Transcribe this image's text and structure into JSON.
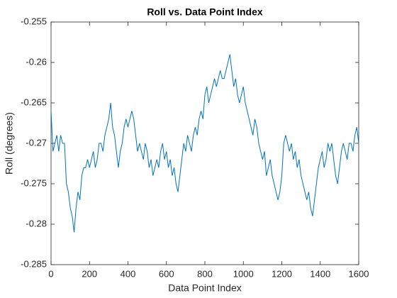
{
  "chart_data": {
    "type": "line",
    "title": "Roll vs. Data Point Index",
    "xlabel": "Data Point Index",
    "ylabel": "Roll (degrees)",
    "x": [
      0,
      10,
      20,
      30,
      40,
      50,
      60,
      70,
      80,
      90,
      100,
      110,
      120,
      130,
      140,
      150,
      160,
      170,
      180,
      190,
      200,
      210,
      220,
      230,
      240,
      250,
      260,
      270,
      280,
      290,
      300,
      310,
      320,
      330,
      340,
      350,
      360,
      370,
      380,
      390,
      400,
      410,
      420,
      430,
      440,
      450,
      460,
      470,
      480,
      490,
      500,
      510,
      520,
      530,
      540,
      550,
      560,
      570,
      580,
      590,
      600,
      610,
      620,
      630,
      640,
      650,
      660,
      670,
      680,
      690,
      700,
      710,
      720,
      730,
      740,
      750,
      760,
      770,
      780,
      790,
      800,
      810,
      820,
      830,
      840,
      850,
      860,
      870,
      880,
      890,
      900,
      910,
      920,
      930,
      940,
      950,
      960,
      970,
      980,
      990,
      1000,
      1010,
      1020,
      1030,
      1040,
      1050,
      1060,
      1070,
      1080,
      1090,
      1100,
      1110,
      1120,
      1130,
      1140,
      1150,
      1160,
      1170,
      1180,
      1190,
      1200,
      1210,
      1220,
      1230,
      1240,
      1250,
      1260,
      1270,
      1280,
      1290,
      1300,
      1310,
      1320,
      1330,
      1340,
      1350,
      1360,
      1370,
      1380,
      1390,
      1400,
      1410,
      1420,
      1430,
      1440,
      1450,
      1460,
      1470,
      1480,
      1490,
      1500,
      1510,
      1520,
      1530,
      1540,
      1550,
      1560,
      1570,
      1580,
      1590,
      1600
    ],
    "series": [
      {
        "name": "Roll",
        "color": "#0072bd",
        "values": [
          -0.266,
          -0.271,
          -0.27,
          -0.269,
          -0.271,
          -0.269,
          -0.27,
          -0.27,
          -0.275,
          -0.276,
          -0.278,
          -0.279,
          -0.281,
          -0.278,
          -0.276,
          -0.277,
          -0.274,
          -0.273,
          -0.273,
          -0.272,
          -0.273,
          -0.272,
          -0.271,
          -0.273,
          -0.272,
          -0.27,
          -0.27,
          -0.271,
          -0.269,
          -0.268,
          -0.267,
          -0.265,
          -0.268,
          -0.269,
          -0.271,
          -0.273,
          -0.271,
          -0.27,
          -0.268,
          -0.267,
          -0.268,
          -0.267,
          -0.266,
          -0.267,
          -0.269,
          -0.271,
          -0.27,
          -0.271,
          -0.272,
          -0.27,
          -0.271,
          -0.273,
          -0.272,
          -0.274,
          -0.273,
          -0.272,
          -0.273,
          -0.271,
          -0.27,
          -0.272,
          -0.271,
          -0.273,
          -0.272,
          -0.274,
          -0.273,
          -0.275,
          -0.276,
          -0.274,
          -0.272,
          -0.27,
          -0.271,
          -0.269,
          -0.27,
          -0.271,
          -0.269,
          -0.268,
          -0.269,
          -0.267,
          -0.266,
          -0.267,
          -0.264,
          -0.263,
          -0.265,
          -0.264,
          -0.263,
          -0.262,
          -0.263,
          -0.262,
          -0.261,
          -0.262,
          -0.262,
          -0.261,
          -0.26,
          -0.259,
          -0.261,
          -0.263,
          -0.262,
          -0.264,
          -0.265,
          -0.264,
          -0.263,
          -0.265,
          -0.266,
          -0.267,
          -0.268,
          -0.269,
          -0.267,
          -0.268,
          -0.27,
          -0.271,
          -0.272,
          -0.271,
          -0.274,
          -0.273,
          -0.272,
          -0.274,
          -0.275,
          -0.276,
          -0.277,
          -0.276,
          -0.274,
          -0.27,
          -0.269,
          -0.27,
          -0.271,
          -0.27,
          -0.272,
          -0.271,
          -0.273,
          -0.272,
          -0.274,
          -0.275,
          -0.276,
          -0.277,
          -0.276,
          -0.278,
          -0.279,
          -0.277,
          -0.275,
          -0.273,
          -0.272,
          -0.271,
          -0.273,
          -0.272,
          -0.27,
          -0.271,
          -0.27,
          -0.272,
          -0.274,
          -0.275,
          -0.273,
          -0.271,
          -0.27,
          -0.271,
          -0.272,
          -0.27,
          -0.27,
          -0.271,
          -0.269,
          -0.268,
          -0.27
        ]
      }
    ],
    "xlim": [
      0,
      1600
    ],
    "xticks": [
      0,
      200,
      400,
      600,
      800,
      1000,
      1200,
      1400,
      1600
    ],
    "ylim": [
      -0.285,
      -0.255
    ],
    "yticks": [
      -0.285,
      -0.28,
      -0.275,
      -0.27,
      -0.265,
      -0.26,
      -0.255
    ],
    "grid": false
  }
}
